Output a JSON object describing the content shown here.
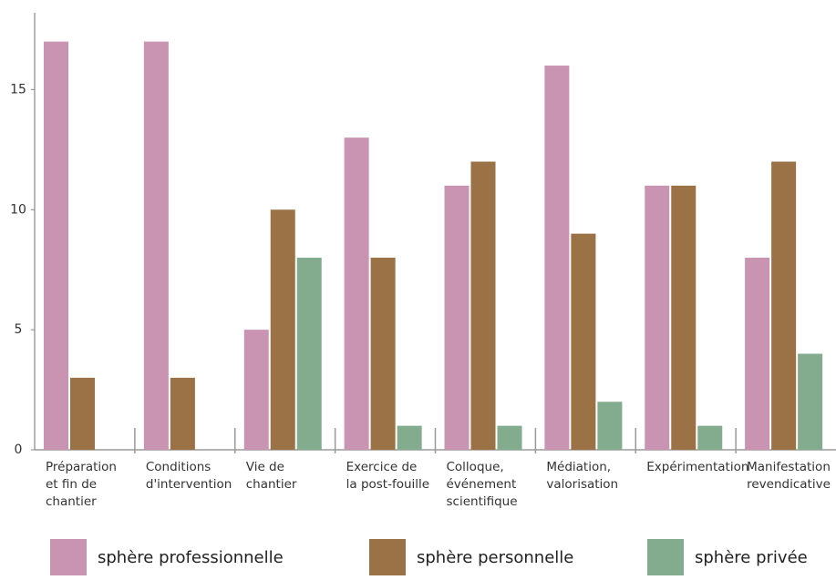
{
  "chart_data": {
    "type": "bar",
    "categories": [
      "Préparation\net fin de\nchantier",
      "Conditions\nd'intervention",
      "Vie de\nchantier",
      "Exercice de\nla post-fouille",
      "Colloque,\névénement\nscientifique",
      "Médiation,\nvalorisation",
      "Expérimentation",
      "Manifestation\nrevendicative"
    ],
    "series": [
      {
        "name": "sphère professionnelle",
        "color": "#c994b2",
        "values": [
          17,
          17,
          5,
          13,
          11,
          16,
          11,
          8
        ]
      },
      {
        "name": "sphère personnelle",
        "color": "#9a7246",
        "values": [
          3,
          3,
          10,
          8,
          12,
          9,
          11,
          12
        ]
      },
      {
        "name": "sphère privée",
        "color": "#83ab8d",
        "values": [
          0,
          0,
          8,
          1,
          1,
          2,
          1,
          4
        ]
      }
    ],
    "ylim": [
      0,
      18.2
    ],
    "yticks": [
      0,
      5,
      10,
      15
    ],
    "grid": false,
    "legend": "bottom"
  }
}
